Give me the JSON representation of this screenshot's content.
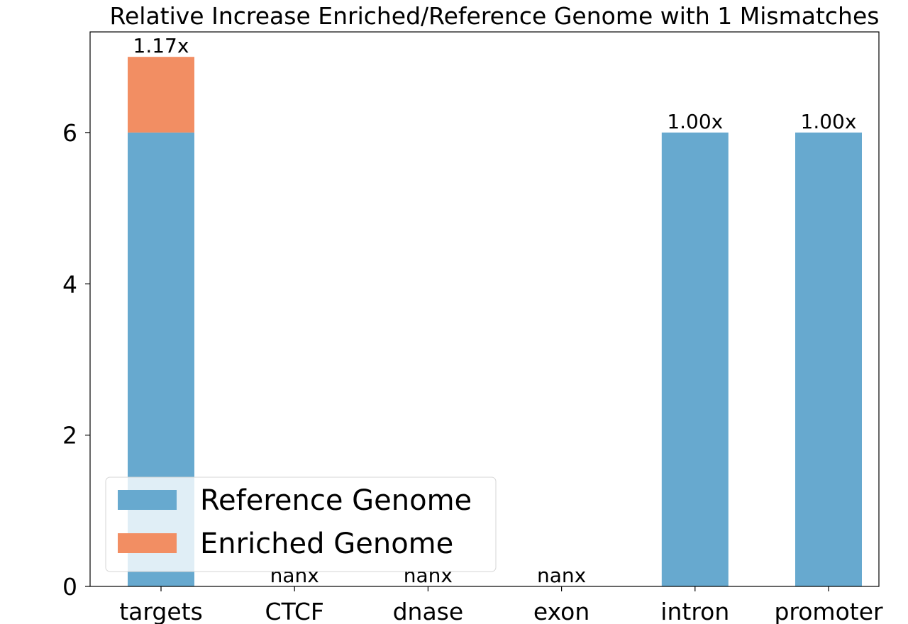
{
  "chart_data": {
    "type": "bar",
    "stacked": true,
    "title": "Relative Increase Enriched/Reference Genome with 1 Mismatches",
    "xlabel": "",
    "ylabel": "",
    "categories": [
      "targets",
      "CTCF",
      "dnase",
      "exon",
      "intron",
      "promoter"
    ],
    "series": [
      {
        "name": "Reference Genome",
        "values": [
          6,
          0,
          0,
          0,
          6,
          6
        ],
        "color": "#67a9cf"
      },
      {
        "name": "Enriched Genome",
        "values": [
          1,
          0,
          0,
          0,
          0,
          0
        ],
        "color": "#f28e63"
      }
    ],
    "bar_labels": [
      "1.17x",
      "nanx",
      "nanx",
      "nanx",
      "1.00x",
      "1.00x"
    ],
    "ylim": [
      0,
      7.33
    ],
    "yticks": [
      0,
      2,
      4,
      6
    ],
    "grid": false,
    "legend_position": "lower-left"
  }
}
